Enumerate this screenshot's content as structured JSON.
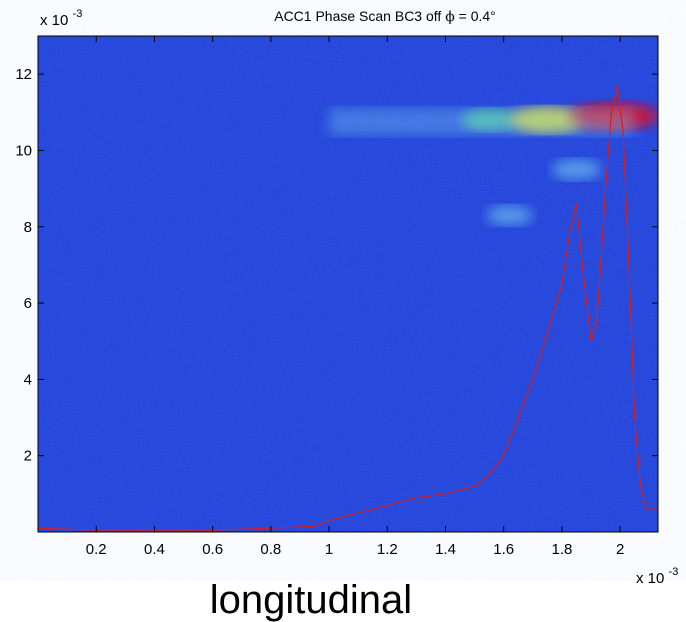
{
  "chart_data": {
    "type": "heatmap",
    "title": "ACC1 Phase Scan BC3 off",
    "title_symbol": "ϕ",
    "title_value": " = 0.4°",
    "xlabel": "longitudinal",
    "ylabel": "",
    "x_multiplier": "x 10",
    "x_exponent": "-3",
    "y_multiplier": "x 10",
    "y_exponent": "-3",
    "xlim": [
      0.0,
      2.13
    ],
    "ylim": [
      0.0,
      13.0
    ],
    "x_ticks": [
      0.2,
      0.4,
      0.6,
      0.8,
      1,
      1.2,
      1.4,
      1.6,
      1.8,
      2
    ],
    "x_tick_labels": [
      "0.2",
      "0.4",
      "0.6",
      "0.8",
      "1",
      "1.2",
      "1.4",
      "1.6",
      "1.8",
      "2"
    ],
    "y_ticks": [
      2,
      4,
      6,
      8,
      10,
      12
    ],
    "y_tick_labels": [
      "2",
      "4",
      "6",
      "8",
      "10",
      "12"
    ],
    "background_color": "#1a3cd8",
    "hot_regions": [
      {
        "x": 1.55,
        "y": 10.8,
        "level": 0.45
      },
      {
        "x": 1.75,
        "y": 10.8,
        "level": 0.8
      },
      {
        "x": 1.98,
        "y": 10.9,
        "level": 1.0
      },
      {
        "x": 1.85,
        "y": 9.5,
        "level": 0.35
      },
      {
        "x": 1.62,
        "y": 8.3,
        "level": 0.3
      }
    ],
    "series": [
      {
        "color": "#d81e1e",
        "x": [
          0.0,
          0.2,
          0.4,
          0.6,
          0.8,
          0.95,
          1.0,
          1.1,
          1.2,
          1.3,
          1.4,
          1.5,
          1.55,
          1.6,
          1.65,
          1.7,
          1.75,
          1.8,
          1.83,
          1.85,
          1.87,
          1.9,
          1.92,
          1.95,
          1.97,
          1.99,
          2.01,
          2.03,
          2.05,
          2.07,
          2.09,
          2.13
        ],
        "y": [
          0.1,
          0.05,
          0.05,
          0.05,
          0.1,
          0.15,
          0.3,
          0.5,
          0.7,
          0.9,
          1.0,
          1.2,
          1.5,
          2.0,
          3.0,
          4.0,
          5.2,
          6.5,
          8.0,
          8.6,
          7.0,
          5.0,
          5.5,
          9.0,
          11.0,
          11.7,
          10.5,
          7.0,
          3.0,
          1.2,
          0.6,
          0.6
        ]
      }
    ]
  }
}
